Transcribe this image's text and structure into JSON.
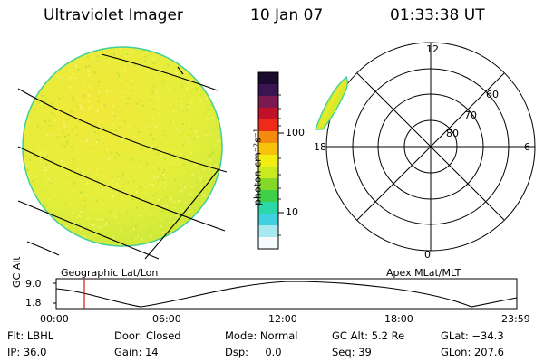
{
  "header": {
    "title": "Ultraviolet Imager",
    "date": "10 Jan 07",
    "time": "01:33:38 UT"
  },
  "globe_panel": {
    "caption": "Geographic Lat/Lon"
  },
  "color_bar": {
    "unit_label": "photon cm⁻²s⁻¹",
    "scale": "log",
    "tick_labels": [
      "100",
      "10"
    ],
    "colors": [
      "#1a0b2e",
      "#3a1550",
      "#7a1a50",
      "#c0102a",
      "#f02a18",
      "#f58a10",
      "#f7c20a",
      "#f2ee14",
      "#c8ea20",
      "#86d828",
      "#3fcf48",
      "#2ad8a8",
      "#40d0e0",
      "#a8e8ee",
      "#f6fbfb"
    ]
  },
  "polar_plot": {
    "caption": "Apex MLat/MLT",
    "mlt_labels": [
      "12",
      "18",
      "6",
      "0"
    ],
    "mlat_labels": [
      "60",
      "70",
      "80"
    ]
  },
  "altitude_plot": {
    "ylabel": "GC Alt",
    "y_ticks": [
      "9.0",
      "1.8"
    ],
    "x_ticks": [
      "00:00",
      "06:00",
      "12:00",
      "18:00",
      "23:59"
    ],
    "current_time_marker": "01:33:38"
  },
  "status": {
    "row1": [
      {
        "label": "Flt:",
        "value": "LBHL"
      },
      {
        "label": "Door:",
        "value": "Closed"
      },
      {
        "label": "Mode:",
        "value": "Normal"
      },
      {
        "label": "GC Alt:",
        "value": "5.2 Re"
      },
      {
        "label": "GLat:",
        "value": "−34.3"
      }
    ],
    "row2": [
      {
        "label": "IP:",
        "value": "36.0"
      },
      {
        "label": "Gain:",
        "value": "14"
      },
      {
        "label": "Dsp:",
        "value": "0.0"
      },
      {
        "label": "Seq:",
        "value": "39"
      },
      {
        "label": "GLon:",
        "value": "207.6"
      }
    ]
  }
}
